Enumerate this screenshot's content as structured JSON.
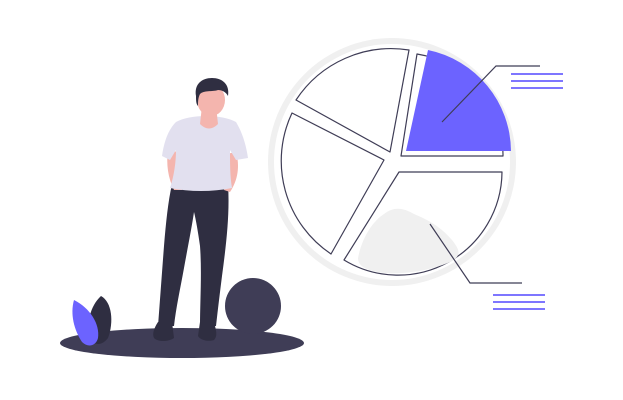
{
  "illustration": {
    "subject": "person-with-pie-chart",
    "icons": [
      "person-icon",
      "pie-chart-icon",
      "plant-icon",
      "ball-icon"
    ],
    "colors": {
      "accent": "#6C63FF",
      "dark": "#3F3D56",
      "pants": "#2F2E41",
      "hair": "#2F2E41",
      "shirt": "#E2E0EF",
      "skin": "#F4B5AE",
      "halo": "#F0F0F0",
      "slice_fill": "#F0F0F0",
      "outline": "#3F3D56",
      "background": "#FFFFFF"
    }
  }
}
